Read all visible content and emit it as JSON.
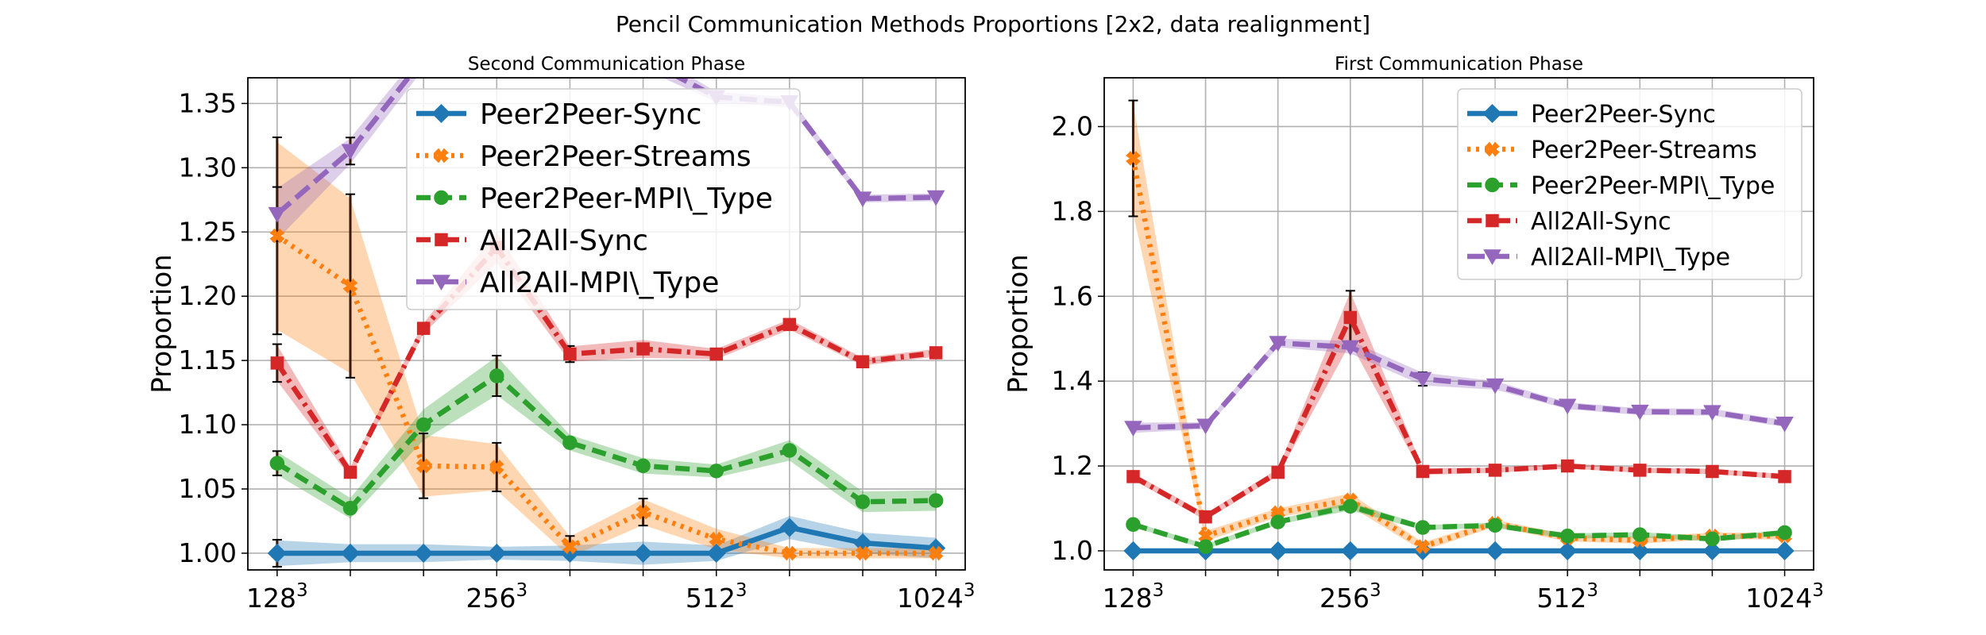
{
  "figure": {
    "title": "Pencil Communication Methods Proportions [2x2, data realignment]"
  },
  "colors": {
    "Peer2Peer-Sync": "#1f77b4",
    "Peer2Peer-Streams": "#ff7f0e",
    "Peer2Peer-MPI\\_Type": "#2ca02c",
    "All2All-Sync": "#d62728",
    "All2All-MPI\\_Type": "#9467bd"
  },
  "chart_data": [
    {
      "type": "line",
      "title": "Second Communication Phase",
      "ylabel": "Proportion",
      "xlabel": "",
      "x": [
        1,
        2,
        3,
        4,
        5,
        6,
        7,
        8,
        9,
        10
      ],
      "xticks": [
        {
          "x": 1,
          "base": "128",
          "exp": "3"
        },
        {
          "x": 4,
          "base": "256",
          "exp": "3"
        },
        {
          "x": 7,
          "base": "512",
          "exp": "3"
        },
        {
          "x": 10,
          "base": "1024",
          "exp": "3"
        }
      ],
      "yticks": [
        "1.00",
        "1.05",
        "1.10",
        "1.15",
        "1.20",
        "1.25",
        "1.30",
        "1.35"
      ],
      "ylim": [
        0.987,
        1.37
      ],
      "grid": true,
      "legend": "upper-center",
      "series": [
        {
          "name": "Peer2Peer-Sync",
          "marker": "diamond",
          "dash": "solid",
          "values": [
            1.0,
            1.0,
            1.0,
            1.0,
            1.0,
            1.0,
            1.0,
            1.02,
            1.008,
            1.004
          ],
          "band": [
            0.01,
            0.007,
            0.007,
            0.005,
            0.006,
            0.009,
            0.006,
            0.009,
            0.008,
            0.008
          ],
          "errorbars": [
            1
          ]
        },
        {
          "name": "Peer2Peer-Streams",
          "marker": "x",
          "dash": "dot",
          "values": [
            1.247,
            1.208,
            1.068,
            1.067,
            1.005,
            1.032,
            1.011,
            1.0,
            1.0,
            1.0
          ],
          "band": [
            0.073,
            0.068,
            0.024,
            0.018,
            0.008,
            0.01,
            0.008,
            0.004,
            0.004,
            0.004
          ],
          "errorbars": [
            1,
            2,
            3,
            4,
            5,
            6
          ]
        },
        {
          "name": "Peer2Peer-MPI\\_Type",
          "marker": "circle",
          "dash": "dash",
          "values": [
            1.07,
            1.035,
            1.1,
            1.138,
            1.086,
            1.068,
            1.064,
            1.08,
            1.04,
            1.041
          ],
          "band": [
            0.009,
            0.008,
            0.012,
            0.015,
            0.006,
            0.006,
            0.005,
            0.008,
            0.008,
            0.008
          ],
          "errorbars": [
            1,
            4
          ]
        },
        {
          "name": "All2All-Sync",
          "marker": "square",
          "dash": "dashdot",
          "values": [
            1.148,
            1.063,
            1.175,
            1.238,
            1.155,
            1.159,
            1.155,
            1.178,
            1.149,
            1.156
          ],
          "band": [
            0.014,
            0.004,
            0.004,
            0.012,
            0.006,
            0.007,
            0.004,
            0.004,
            0.003,
            0.003
          ],
          "errorbars": [
            1,
            5
          ]
        },
        {
          "name": "All2All-MPI\\_Type",
          "marker": "triangle-down",
          "dash": "longdash",
          "values": [
            1.264,
            1.313,
            1.385,
            1.395,
            1.39,
            1.385,
            1.355,
            1.351,
            1.276,
            1.277
          ],
          "band": [
            0.02,
            0.01,
            0.008,
            0.008,
            0.008,
            0.008,
            0.004,
            0.004,
            0.003,
            0.003
          ],
          "errorbars": [
            1,
            2
          ]
        }
      ]
    },
    {
      "type": "line",
      "title": "First Communication Phase",
      "ylabel": "Proportion",
      "xlabel": "",
      "x": [
        1,
        2,
        3,
        4,
        5,
        6,
        7,
        8,
        9,
        10
      ],
      "xticks": [
        {
          "x": 1,
          "base": "128",
          "exp": "3"
        },
        {
          "x": 4,
          "base": "256",
          "exp": "3"
        },
        {
          "x": 7,
          "base": "512",
          "exp": "3"
        },
        {
          "x": 10,
          "base": "1024",
          "exp": "3"
        }
      ],
      "yticks": [
        "1.0",
        "1.2",
        "1.4",
        "1.6",
        "1.8",
        "2.0"
      ],
      "ylim": [
        0.955,
        2.115
      ],
      "grid": true,
      "legend": "upper-right",
      "series": [
        {
          "name": "Peer2Peer-Sync",
          "marker": "diamond",
          "dash": "solid",
          "values": [
            1.0,
            1.0,
            1.0,
            1.0,
            1.0,
            1.0,
            1.0,
            1.0,
            1.0,
            1.0
          ],
          "band": [
            0.004,
            0.004,
            0.004,
            0.004,
            0.004,
            0.004,
            0.004,
            0.004,
            0.004,
            0.004
          ],
          "errorbars": []
        },
        {
          "name": "Peer2Peer-Streams",
          "marker": "x",
          "dash": "dot",
          "values": [
            1.925,
            1.035,
            1.09,
            1.12,
            1.01,
            1.065,
            1.03,
            1.025,
            1.035,
            1.035
          ],
          "band": [
            0.13,
            0.012,
            0.01,
            0.015,
            0.01,
            0.008,
            0.008,
            0.008,
            0.008,
            0.008
          ],
          "errorbars": [
            1
          ]
        },
        {
          "name": "Peer2Peer-MPI\\_Type",
          "marker": "circle",
          "dash": "dash",
          "values": [
            1.062,
            1.01,
            1.068,
            1.105,
            1.055,
            1.06,
            1.035,
            1.038,
            1.028,
            1.043
          ],
          "band": [
            0.006,
            0.006,
            0.006,
            0.01,
            0.006,
            0.006,
            0.006,
            0.006,
            0.006,
            0.006
          ],
          "errorbars": []
        },
        {
          "name": "All2All-Sync",
          "marker": "square",
          "dash": "dashdot",
          "values": [
            1.175,
            1.08,
            1.185,
            1.55,
            1.187,
            1.19,
            1.2,
            1.19,
            1.187,
            1.175
          ],
          "band": [
            0.008,
            0.008,
            0.008,
            0.06,
            0.008,
            0.006,
            0.006,
            0.006,
            0.006,
            0.006
          ],
          "errorbars": [
            4
          ]
        },
        {
          "name": "All2All-MPI\\_Type",
          "marker": "triangle-down",
          "dash": "longdash",
          "values": [
            1.29,
            1.295,
            1.49,
            1.48,
            1.405,
            1.39,
            1.342,
            1.328,
            1.327,
            1.3
          ],
          "band": [
            0.012,
            0.008,
            0.01,
            0.015,
            0.015,
            0.01,
            0.008,
            0.008,
            0.008,
            0.008
          ],
          "errorbars": [
            5
          ]
        }
      ]
    }
  ]
}
